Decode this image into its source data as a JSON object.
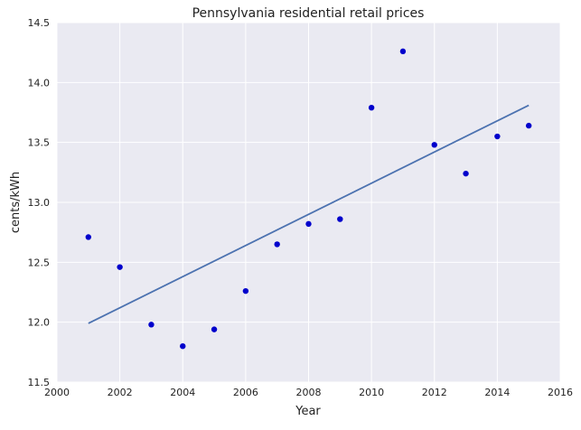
{
  "chart_data": {
    "type": "scatter",
    "title": "Pennsylvania   residential retail prices",
    "xlabel": "Year",
    "ylabel": "cents/kWh",
    "xlim": [
      2000,
      2016
    ],
    "ylim": [
      11.5,
      14.5
    ],
    "xticks": [
      "2000",
      "2002",
      "2004",
      "2006",
      "2008",
      "2010",
      "2012",
      "2014",
      "2016"
    ],
    "yticks": [
      "11.5",
      "12.0",
      "12.5",
      "13.0",
      "13.5",
      "14.0",
      "14.5"
    ],
    "grid": true,
    "series": [
      {
        "type": "scatter",
        "color": "#0000cc",
        "x": [
          2001,
          2002,
          2003,
          2004,
          2005,
          2006,
          2007,
          2008,
          2009,
          2010,
          2011,
          2012,
          2013,
          2014,
          2015
        ],
        "y": [
          12.71,
          12.46,
          11.98,
          11.8,
          11.94,
          12.26,
          12.65,
          12.82,
          12.86,
          13.79,
          14.26,
          13.48,
          13.24,
          13.55,
          13.64
        ]
      },
      {
        "type": "line",
        "color": "#4c72b0",
        "x": [
          2001,
          2015
        ],
        "y": [
          11.99,
          13.81
        ]
      }
    ],
    "plot_background": "#eaeaf2",
    "grid_color": "#ffffff"
  }
}
